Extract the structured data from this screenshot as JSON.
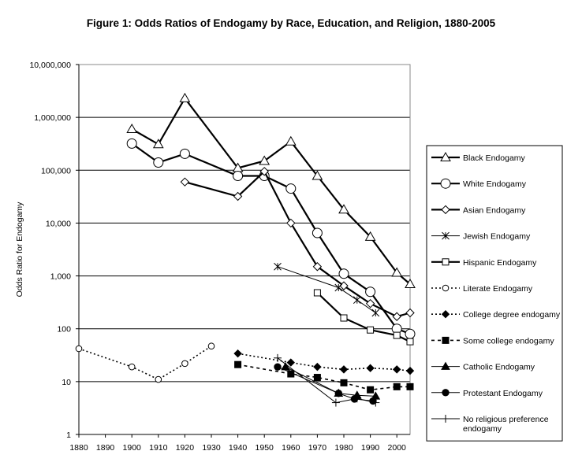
{
  "chart_data": {
    "type": "line",
    "title": "Figure 1: Odds Ratios of Endogamy by Race, Education, and Religion, 1880-2005",
    "xlabel": "",
    "ylabel": "Odds Ratio for Endogamy",
    "xlim": [
      1880,
      2005
    ],
    "ylim": [
      1,
      10000000
    ],
    "yscale": "log",
    "x_ticks": [
      "1880",
      "1890",
      "1900",
      "1910",
      "1920",
      "1930",
      "1940",
      "1950",
      "1960",
      "1970",
      "1980",
      "1990",
      "2000"
    ],
    "y_ticks": [
      "1",
      "10",
      "100",
      "1,000",
      "10,000",
      "100,000",
      "1,000,000",
      "10,000,000"
    ],
    "y_tick_values": [
      1,
      10,
      100,
      1000,
      10000,
      100000,
      1000000,
      10000000
    ],
    "grid": "horizontal",
    "legend_position": "right",
    "series": [
      {
        "name": "Black Endogamy",
        "marker": "triangle-open",
        "line": "solid-thick",
        "x": [
          1900,
          1910,
          1920,
          1940,
          1950,
          1960,
          1970,
          1980,
          1990,
          2000,
          2005
        ],
        "y": [
          600000,
          310000,
          2300000,
          110000,
          150000,
          350000,
          78000,
          18000,
          5500,
          1150,
          700
        ]
      },
      {
        "name": "White Endogamy",
        "marker": "circle-open",
        "line": "solid-thick",
        "x": [
          1900,
          1910,
          1920,
          1940,
          1950,
          1960,
          1970,
          1980,
          1990,
          2000,
          2005
        ],
        "y": [
          320000,
          140000,
          205000,
          78000,
          78000,
          45000,
          6500,
          1100,
          500,
          100,
          80
        ]
      },
      {
        "name": "Asian Endogamy",
        "marker": "diamond-open",
        "line": "solid-thick",
        "x": [
          1920,
          1940,
          1950,
          1960,
          1970,
          1980,
          1990,
          2000,
          2005
        ],
        "y": [
          60000,
          32000,
          95000,
          10000,
          1500,
          650,
          300,
          170,
          200
        ]
      },
      {
        "name": "Jewish Endogamy",
        "marker": "star",
        "line": "solid-thin",
        "x": [
          1955,
          1978,
          1985,
          1992
        ],
        "y": [
          1500,
          600,
          350,
          200
        ]
      },
      {
        "name": "Hispanic Endogamy",
        "marker": "square-open",
        "line": "solid-thick",
        "x": [
          1970,
          1980,
          1990,
          2000,
          2005
        ],
        "y": [
          480,
          160,
          95,
          75,
          57
        ]
      },
      {
        "name": "Literate Endogamy",
        "marker": "circle-open-small",
        "line": "dotted",
        "x": [
          1880,
          1900,
          1910,
          1920,
          1930
        ],
        "y": [
          42,
          19,
          11,
          22,
          47
        ]
      },
      {
        "name": "College degree endogamy",
        "marker": "diamond-filled",
        "line": "dotted",
        "x": [
          1940,
          1960,
          1970,
          1980,
          1990,
          2000,
          2005
        ],
        "y": [
          34,
          23,
          19,
          17,
          18,
          17,
          16
        ]
      },
      {
        "name": "Some college endogamy",
        "marker": "square-filled",
        "line": "dashed",
        "x": [
          1940,
          1960,
          1970,
          1980,
          1990,
          2000,
          2005
        ],
        "y": [
          21,
          14,
          12,
          9.5,
          7,
          8,
          8
        ]
      },
      {
        "name": "Catholic Endogamy",
        "marker": "triangle-filled",
        "line": "solid-thin",
        "x": [
          1958,
          1978,
          1985,
          1992
        ],
        "y": [
          19,
          6,
          5.5,
          5.3
        ]
      },
      {
        "name": "Protestant Endogamy",
        "marker": "circle-filled",
        "line": "solid-thin",
        "x": [
          1955,
          1978,
          1984,
          1991
        ],
        "y": [
          19,
          6,
          4.7,
          4.3
        ]
      },
      {
        "name": "No religious preference endogamy",
        "marker": "plus",
        "line": "solid-thin",
        "x": [
          1955,
          1977,
          1985,
          1992
        ],
        "y": [
          28,
          4,
          4.8,
          4
        ]
      }
    ],
    "legend_entries": [
      {
        "label": "Black Endogamy",
        "lines": [
          "Black Endogamy"
        ]
      },
      {
        "label": "White Endogamy",
        "lines": [
          "White Endogamy"
        ]
      },
      {
        "label": "Asian Endogamy",
        "lines": [
          "Asian Endogamy"
        ]
      },
      {
        "label": "Jewish Endogamy",
        "lines": [
          "Jewish Endogamy"
        ]
      },
      {
        "label": "Hispanic Endogamy",
        "lines": [
          "Hispanic Endogamy"
        ]
      },
      {
        "label": "Literate Endogamy",
        "lines": [
          "Literate Endogamy"
        ]
      },
      {
        "label": "College degree endogamy",
        "lines": [
          "College degree endogamy"
        ]
      },
      {
        "label": "Some college endogamy",
        "lines": [
          "Some college endogamy"
        ]
      },
      {
        "label": "Catholic Endogamy",
        "lines": [
          "Catholic Endogamy"
        ]
      },
      {
        "label": "Protestant Endogamy",
        "lines": [
          "Protestant Endogamy"
        ]
      },
      {
        "label": "No religious preference endogamy",
        "lines": [
          "No religious preference",
          "endogamy"
        ]
      }
    ]
  }
}
